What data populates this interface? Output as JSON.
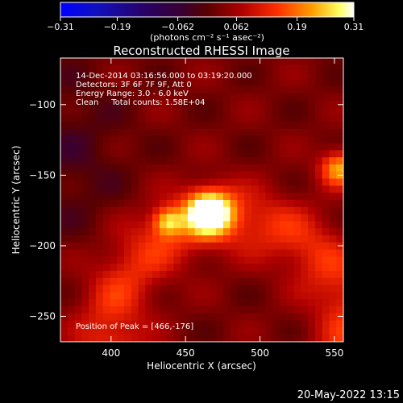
{
  "chart_data": {
    "type": "heatmap",
    "title": "Reconstructed RHESSI Image",
    "xlabel": "Heliocentric X (arcsec)",
    "ylabel": "Heliocentric Y (arcsec)",
    "xlim": [
      366,
      556
    ],
    "ylim": [
      -268,
      -67
    ],
    "xticks": [
      400,
      450,
      500,
      550
    ],
    "yticks": [
      -100,
      -150,
      -200,
      -250
    ],
    "colorbar": {
      "min": -0.31,
      "max": 0.31,
      "ticks": [
        "−0.31",
        "−0.19",
        "−0.062",
        "0.062",
        "0.19",
        "0.31"
      ],
      "tick_values": [
        -0.31,
        -0.19,
        -0.062,
        0.062,
        0.19,
        0.31
      ],
      "unit_label": "(photons cm⁻² s⁻¹ asec⁻²)"
    },
    "annotations": [
      "14-Dec-2014 03:16:56.000 to 03:19:20.000",
      "Detectors: 3F 6F 7F 9F, Att 0",
      "Energy Range: 3.0 - 6.0 keV",
      "Clean     Total counts: 1.58E+04"
    ],
    "peak_label": "Position of Peak = [466,-176]",
    "peak": {
      "x": 466,
      "y": -176,
      "value": 0.31
    },
    "sources": [
      {
        "x": 466,
        "y": -176,
        "amp": 0.31,
        "sigma": 11
      },
      {
        "x": 438,
        "y": -183,
        "amp": 0.17,
        "sigma": 7
      },
      {
        "x": 553,
        "y": -145,
        "amp": 0.2,
        "sigma": 9
      }
    ],
    "arc": {
      "cx": 480,
      "cy": -262,
      "r": 80,
      "amp": 0.11,
      "width": 17
    },
    "grid": false
  },
  "footer": {
    "timestamp": "20-May-2022 13:15"
  },
  "colors": {
    "background": "#000000",
    "text": "#ffffff"
  }
}
